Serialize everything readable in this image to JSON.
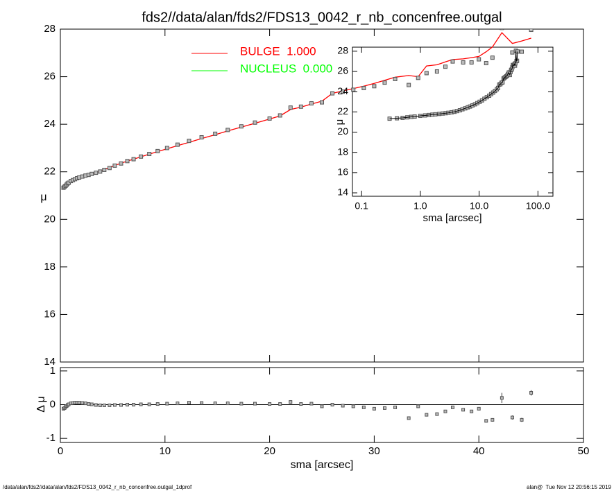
{
  "chart_data": [
    {
      "type": "profile",
      "title": "fds2//data/alan/fds2/FDS13_0042_r_nb_concenfree.outgal",
      "ylabel": "μ",
      "x": [
        0.3,
        0.4,
        0.5,
        0.6,
        0.7,
        0.8,
        1.0,
        1.2,
        1.4,
        1.6,
        1.8,
        2.1,
        2.4,
        2.7,
        3.0,
        3.4,
        3.8,
        4.2,
        4.7,
        5.2,
        5.8,
        6.4,
        7.0,
        7.7,
        8.5,
        9.3,
        10.2,
        11.2,
        12.3,
        13.5,
        14.8,
        16.0,
        17.3,
        18.6,
        20.0,
        21.0,
        22.0,
        23.0,
        24.0,
        25.0,
        26.0,
        27.0,
        28.0,
        29.0,
        30.0,
        31.0,
        32.0,
        33.3,
        34.2,
        35.0,
        36.0,
        36.8,
        37.5,
        38.5,
        39.3,
        40.0,
        40.7,
        41.3,
        42.2,
        43.2,
        44.1,
        45.0
      ],
      "series": [
        {
          "color": "#ff0000",
          "values": [
            21.45,
            21.47,
            21.48,
            21.5,
            21.52,
            21.53,
            21.57,
            21.6,
            21.63,
            21.67,
            21.7,
            21.75,
            21.8,
            21.85,
            21.9,
            21.97,
            22.03,
            22.1,
            22.18,
            22.27,
            22.36,
            22.45,
            22.53,
            22.63,
            22.74,
            22.85,
            22.97,
            23.1,
            23.24,
            23.4,
            23.56,
            23.72,
            23.88,
            24.04,
            24.22,
            24.35,
            24.62,
            24.72,
            24.85,
            24.97,
            25.3,
            25.4,
            25.5,
            25.6,
            25.72,
            25.85,
            25.98,
            26.05,
            26.0,
            26.45,
            26.5,
            26.62,
            26.72,
            26.75,
            26.8,
            26.85,
            27.05,
            27.25,
            27.85,
            27.4,
            27.5,
            27.62
          ]
        },
        {
          "color": "#555555",
          "values": [
            21.33,
            21.37,
            21.41,
            21.46,
            21.51,
            21.54,
            21.61,
            21.65,
            21.69,
            21.73,
            21.76,
            21.8,
            21.84,
            21.87,
            21.91,
            21.96,
            22.01,
            22.08,
            22.16,
            22.26,
            22.35,
            22.45,
            22.53,
            22.64,
            22.75,
            22.87,
            23.0,
            23.14,
            23.3,
            23.45,
            23.6,
            23.76,
            23.91,
            24.07,
            24.24,
            24.37,
            24.7,
            24.74,
            24.88,
            24.92,
            25.3,
            25.37,
            25.45,
            25.52,
            25.6,
            25.75,
            25.9,
            25.65,
            25.95,
            26.15,
            26.22,
            26.42,
            26.64,
            26.6,
            26.6,
            26.73,
            26.57,
            26.8,
            28.05,
            27.02,
            27.05,
            27.97
          ]
        }
      ],
      "legend": [
        {
          "label": "BULGE  1.000",
          "color": "#ff0000"
        },
        {
          "label": "NUCLEUS  0.000",
          "color": "#00ff00"
        }
      ],
      "xlim": [
        0,
        50
      ],
      "xticks": [
        0,
        10,
        20,
        30,
        40,
        50
      ],
      "ylim": [
        14,
        28
      ],
      "yticks": [
        14,
        16,
        18,
        20,
        22,
        24,
        26,
        28
      ]
    },
    {
      "type": "residual",
      "ylabel": "Δ μ",
      "xlabel": "sma [arcsec]",
      "values": [
        -0.12,
        -0.1,
        -0.07,
        -0.04,
        -0.01,
        0.01,
        0.04,
        0.05,
        0.06,
        0.06,
        0.06,
        0.05,
        0.04,
        0.02,
        0.01,
        -0.01,
        -0.02,
        -0.02,
        -0.02,
        -0.01,
        -0.01,
        0.0,
        0.0,
        0.01,
        0.01,
        0.02,
        0.03,
        0.04,
        0.06,
        0.05,
        0.04,
        0.04,
        0.03,
        0.03,
        0.02,
        0.02,
        0.08,
        0.02,
        0.03,
        -0.05,
        0.0,
        -0.03,
        -0.05,
        -0.08,
        -0.12,
        -0.1,
        -0.08,
        -0.4,
        -0.05,
        -0.3,
        -0.28,
        -0.2,
        -0.08,
        -0.15,
        -0.2,
        -0.12,
        -0.48,
        -0.45,
        0.2,
        -0.38,
        -0.45,
        0.35
      ],
      "errors": [
        0.01,
        0.01,
        0.01,
        0.01,
        0.01,
        0.01,
        0.01,
        0.01,
        0.01,
        0.01,
        0.01,
        0.01,
        0.01,
        0.01,
        0.01,
        0.01,
        0.01,
        0.01,
        0.01,
        0.01,
        0.01,
        0.01,
        0.01,
        0.01,
        0.01,
        0.01,
        0.01,
        0.01,
        0.01,
        0.01,
        0.01,
        0.01,
        0.01,
        0.01,
        0.01,
        0.01,
        0.02,
        0.02,
        0.02,
        0.02,
        0.02,
        0.02,
        0.02,
        0.02,
        0.02,
        0.02,
        0.02,
        0.03,
        0.03,
        0.03,
        0.03,
        0.03,
        0.03,
        0.04,
        0.04,
        0.04,
        0.05,
        0.05,
        0.15,
        0.06,
        0.06,
        0.08
      ],
      "color": "#555555",
      "ylim": [
        -1.12,
        1.1
      ],
      "yticks": [
        -1,
        0,
        1
      ],
      "zero_line": true
    },
    {
      "type": "profile_log",
      "xlabel": "sma [arcsec]",
      "ylabel": "μ",
      "log_x": true,
      "xlim": [
        0.07,
        180
      ],
      "xticks": [
        0.1,
        {
          "value": 1,
          "label": "1.0"
        },
        {
          "value": 10,
          "label": "10.0"
        },
        {
          "value": 100,
          "label": "100.0"
        }
      ],
      "ylim": [
        13.66,
        28.4
      ],
      "yticks": [
        14,
        16,
        18,
        20,
        22,
        24,
        26,
        28
      ]
    }
  ],
  "footer": {
    "left": "/data/alan/fds2//data/alan/fds2/FDS13_0042_r_nb_concenfree.outgal_1dprof",
    "right": "alan@  Tue Nov 12 20:56:15 2019"
  }
}
